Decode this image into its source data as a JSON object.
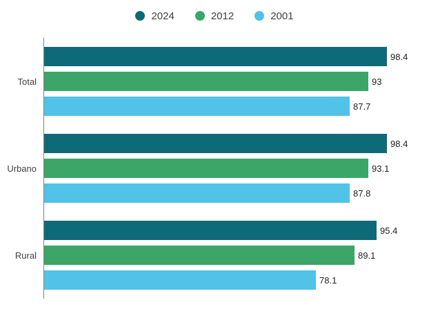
{
  "chart_data": {
    "type": "bar",
    "orientation": "horizontal",
    "title": "",
    "xlabel": "",
    "ylabel": "",
    "categories": [
      "Total",
      "Urbano",
      "Rural"
    ],
    "series": [
      {
        "name": "2024",
        "color": "#0e6a78",
        "values": [
          98.4,
          98.4,
          95.4
        ]
      },
      {
        "name": "2012",
        "color": "#3ba668",
        "values": [
          93,
          93.1,
          89.1
        ]
      },
      {
        "name": "2001",
        "color": "#51c2e8",
        "values": [
          87.7,
          87.8,
          78.1
        ]
      }
    ],
    "value_labels": [
      [
        "98.4",
        "93",
        "87.7"
      ],
      [
        "98.4",
        "93.1",
        "87.8"
      ],
      [
        "95.4",
        "89.1",
        "78.1"
      ]
    ],
    "xlim": [
      0,
      100
    ],
    "grid": false,
    "legend_position": "top",
    "baseline_color": "#7f7f7f",
    "value_label_color": "#1f1f1f",
    "category_label_color": "#424242"
  }
}
